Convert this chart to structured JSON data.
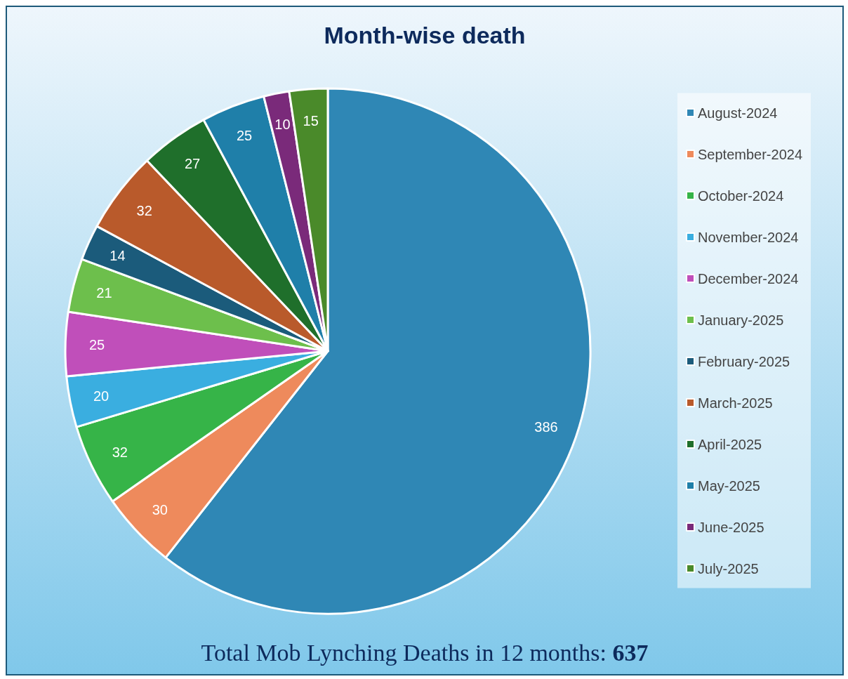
{
  "chart_data": {
    "type": "pie",
    "title": "Month-wise death",
    "categories": [
      "August-2024",
      "September-2024",
      "October-2024",
      "November-2024",
      "December-2024",
      "January-2025",
      "February-2025",
      "March-2025",
      "April-2025",
      "May-2025",
      "June-2025",
      "July-2025"
    ],
    "values": [
      386,
      30,
      32,
      20,
      25,
      21,
      14,
      32,
      27,
      25,
      10,
      15
    ],
    "colors": [
      "#2f87b5",
      "#ee8a5c",
      "#36b448",
      "#3aaee0",
      "#c04fba",
      "#6dbf4c",
      "#1b5b7b",
      "#b95a2b",
      "#1f6f2b",
      "#1f7fa9",
      "#7a2a7a",
      "#4a8a2a"
    ],
    "data_labels": true,
    "legend": "right",
    "annotations": [
      "Total Mob Lynching Deaths in 12 months: 637"
    ]
  }
}
